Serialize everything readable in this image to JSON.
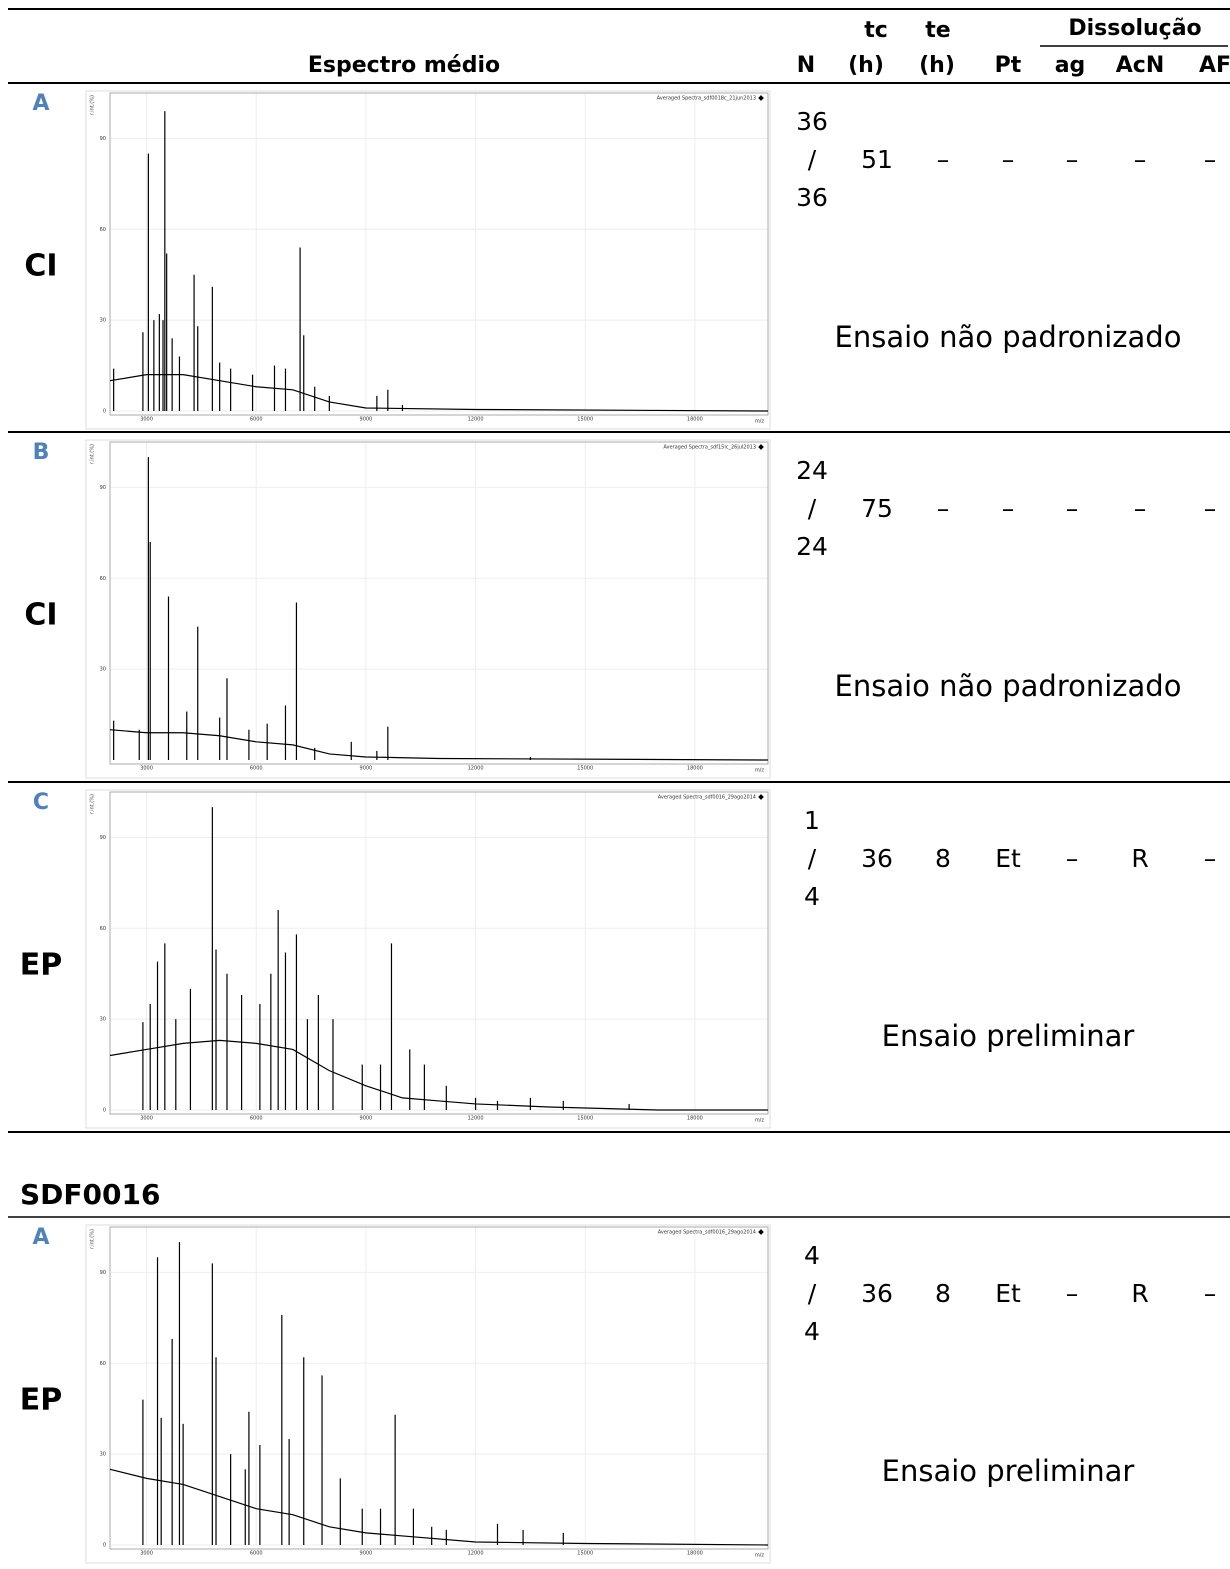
{
  "header": {
    "spectrum": "Espectro médio",
    "n": "N",
    "tc": "tc",
    "tc_unit": "(h)",
    "te": "te",
    "te_unit": "(h)",
    "pt": "Pt",
    "dissolution": "Dissolução",
    "ag": "ag",
    "acn": "AcN",
    "af": "AF"
  },
  "section_title": "SDF0016",
  "rows": [
    {
      "letter": "A",
      "group": "CI",
      "n_top": 36,
      "n_sep": "/",
      "n_bottom": 36,
      "tc": 51,
      "te": "–",
      "pt": "–",
      "ag": "–",
      "acn": "–",
      "af": "–",
      "note": "Ensaio não padronizado",
      "spectrum": {
        "legend": "Averaged Spectra_sdf0018c_21jun2013",
        "y_label": "r.int.(%)",
        "x_label": "m/z",
        "xlim": [
          2000,
          20000
        ],
        "ylim": [
          0,
          105
        ],
        "xticks": [
          3000,
          6000,
          9000,
          12000,
          15000,
          18000
        ],
        "yticks": [
          0,
          30,
          60,
          90
        ],
        "peaks_mz": [
          2100,
          2900,
          3050,
          3200,
          3350,
          3450,
          3500,
          3550,
          3700,
          3900,
          4300,
          4400,
          4800,
          5000,
          5300,
          5900,
          6500,
          6800,
          7200,
          7300,
          7600,
          8000,
          9300,
          9600,
          10000
        ],
        "peaks_int": [
          14,
          26,
          85,
          30,
          32,
          30,
          99,
          52,
          24,
          18,
          45,
          28,
          41,
          16,
          14,
          12,
          15,
          14,
          54,
          25,
          8,
          5,
          5,
          7,
          2
        ],
        "baseline_mz": [
          2000,
          3000,
          4000,
          5000,
          6000,
          7000,
          8000,
          9000,
          12000,
          20000
        ],
        "baseline_int": [
          10,
          12,
          12,
          10,
          8,
          7,
          3,
          1,
          0.5,
          0
        ]
      }
    },
    {
      "letter": "B",
      "group": "CI",
      "n_top": 24,
      "n_sep": "/",
      "n_bottom": 24,
      "tc": 75,
      "te": "–",
      "pt": "–",
      "ag": "–",
      "acn": "–",
      "af": "–",
      "note": "Ensaio não padronizado",
      "spectrum": {
        "legend": "Averaged Spectra_sdf15lc_26jul2013",
        "y_label": "r.int.(%)",
        "x_label": "m/z",
        "xlim": [
          2000,
          20000
        ],
        "ylim": [
          0,
          105
        ],
        "xticks": [
          3000,
          6000,
          9000,
          12000,
          15000,
          18000
        ],
        "yticks": [
          30,
          60,
          90
        ],
        "peaks_mz": [
          2100,
          2800,
          3050,
          3100,
          3600,
          4100,
          4400,
          5000,
          5200,
          5800,
          6300,
          6800,
          7100,
          7600,
          8600,
          9300,
          9600,
          13500
        ],
        "peaks_int": [
          13,
          10,
          100,
          72,
          54,
          16,
          44,
          14,
          27,
          10,
          12,
          18,
          52,
          4,
          6,
          3,
          11,
          1
        ],
        "baseline_mz": [
          2000,
          3000,
          4000,
          5000,
          6000,
          7000,
          8000,
          9000,
          11000,
          20000
        ],
        "baseline_int": [
          10,
          9,
          9,
          8,
          6,
          5,
          2,
          1,
          0.5,
          0
        ]
      }
    },
    {
      "letter": "C",
      "group": "EP",
      "n_top": 1,
      "n_sep": "/",
      "n_bottom": 4,
      "tc": 36,
      "te": 8,
      "pt": "Et",
      "ag": "–",
      "acn": "R",
      "af": "–",
      "note": "Ensaio preliminar",
      "spectrum": {
        "legend": "Averaged Spectra_sdf0016_29ago2014",
        "y_label": "r.int.(%)",
        "x_label": "m/z",
        "xlim": [
          2000,
          20000
        ],
        "ylim": [
          0,
          105
        ],
        "xticks": [
          3000,
          6000,
          9000,
          12000,
          15000,
          18000
        ],
        "yticks": [
          0,
          30,
          60,
          90
        ],
        "peaks_mz": [
          2900,
          3100,
          3300,
          3500,
          3800,
          4200,
          4800,
          4900,
          5200,
          5600,
          6100,
          6400,
          6600,
          6800,
          7100,
          7400,
          7700,
          8100,
          8900,
          9400,
          9700,
          10200,
          10600,
          11200,
          12000,
          12600,
          13500,
          14400,
          16200
        ],
        "peaks_int": [
          29,
          35,
          49,
          55,
          30,
          40,
          100,
          53,
          45,
          38,
          35,
          45,
          66,
          52,
          58,
          30,
          38,
          30,
          15,
          15,
          55,
          20,
          15,
          8,
          4,
          3,
          4,
          3,
          2
        ],
        "baseline_mz": [
          2000,
          3000,
          4000,
          5000,
          6000,
          7000,
          8000,
          9000,
          10000,
          11000,
          12000,
          14000,
          17000,
          20000
        ],
        "baseline_int": [
          18,
          20,
          22,
          23,
          22,
          20,
          13,
          8,
          4,
          3,
          2,
          1,
          0,
          0
        ]
      }
    },
    {
      "letter": "A",
      "group": "EP",
      "n_top": 4,
      "n_sep": "/",
      "n_bottom": 4,
      "tc": 36,
      "te": 8,
      "pt": "Et",
      "ag": "–",
      "acn": "R",
      "af": "–",
      "note": "Ensaio preliminar",
      "spectrum": {
        "legend": "Averaged Spectra_sdf0016_29ago2014",
        "y_label": "r.int.(%)",
        "x_label": "m/z",
        "xlim": [
          2000,
          20000
        ],
        "ylim": [
          0,
          105
        ],
        "xticks": [
          3000,
          6000,
          9000,
          12000,
          15000,
          18000
        ],
        "yticks": [
          0,
          30,
          60,
          90
        ],
        "peaks_mz": [
          2900,
          3300,
          3400,
          3700,
          3900,
          4000,
          4800,
          4900,
          5300,
          5700,
          5800,
          6100,
          6700,
          6900,
          7300,
          7800,
          8300,
          8900,
          9400,
          9800,
          10300,
          10800,
          11200,
          12600,
          13300,
          14400
        ],
        "peaks_int": [
          48,
          95,
          42,
          68,
          100,
          40,
          93,
          62,
          30,
          25,
          44,
          33,
          76,
          35,
          62,
          56,
          22,
          12,
          12,
          43,
          12,
          6,
          5,
          7,
          5,
          4
        ],
        "baseline_mz": [
          2000,
          3000,
          4000,
          5000,
          6000,
          7000,
          8000,
          9000,
          10000,
          12000,
          15000,
          20000
        ],
        "baseline_int": [
          25,
          22,
          20,
          16,
          12,
          10,
          6,
          4,
          3,
          1,
          0.5,
          0
        ]
      }
    }
  ]
}
